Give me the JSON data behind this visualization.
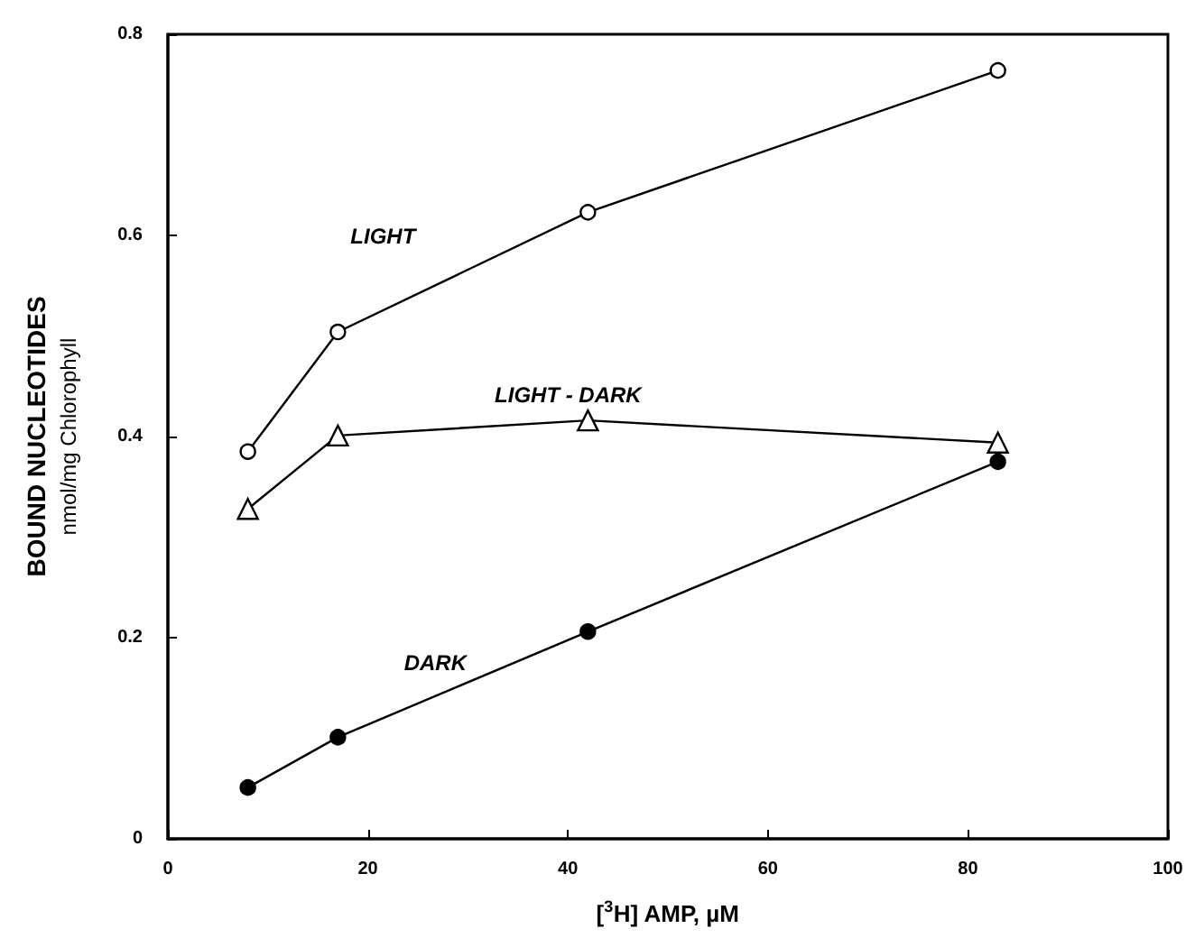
{
  "chart_data": {
    "type": "line",
    "xlabel": "[$^{3}$H] AMP, µM",
    "ylabel": "BOUND NUCLEOTIDES\nnmol/mg Chlorophyll",
    "x": [
      8,
      17,
      42,
      83
    ],
    "series": [
      {
        "name": "LIGHT",
        "color": "#000000",
        "marker": "circle",
        "values": [
          0.385,
          0.504,
          0.623,
          0.764
        ]
      },
      {
        "name": "LIGHT - DARK",
        "color": "#000000",
        "marker": "triangle",
        "values": [
          0.328,
          0.401,
          0.416,
          0.394
        ]
      },
      {
        "name": "DARK",
        "color": "#000000",
        "marker": "circle",
        "values": [
          0.051,
          0.101,
          0.206,
          0.375
        ]
      }
    ],
    "xlim": [
      0,
      100
    ],
    "xticks": [
      0,
      20,
      40,
      60,
      80,
      100
    ],
    "ylim": [
      0,
      0.8
    ],
    "yticks": [
      0,
      0.2,
      0.4,
      0.6,
      0.8
    ],
    "grid": false,
    "legend": false,
    "line_style": "solid"
  }
}
